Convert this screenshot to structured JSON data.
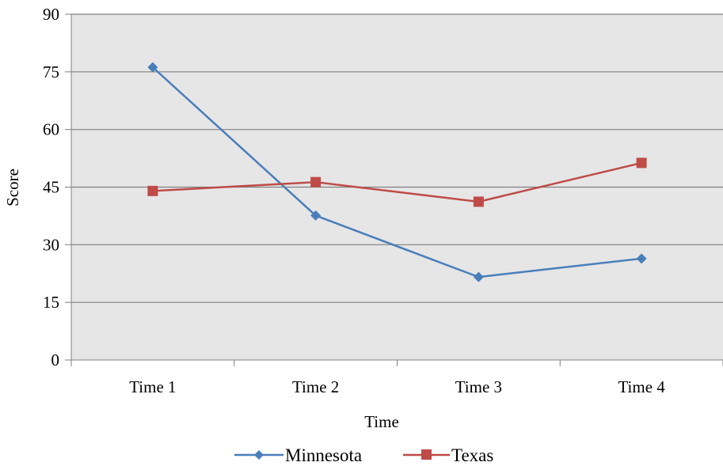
{
  "chart_data": {
    "type": "line",
    "title": "",
    "xlabel": "Time",
    "ylabel": "Score",
    "categories": [
      "Time 1",
      "Time 2",
      "Time 3",
      "Time 4"
    ],
    "ylim": [
      0,
      90
    ],
    "yticks": [
      0,
      15,
      30,
      45,
      60,
      75,
      90
    ],
    "ytick_labels": [
      "0",
      "15",
      "30",
      "45",
      "60",
      "75",
      "90"
    ],
    "grid": true,
    "legend_position": "bottom",
    "plot_background": "#e6e6e6",
    "series": [
      {
        "name": "Minnesota",
        "values": [
          76.2,
          37.6,
          21.6,
          26.4
        ],
        "color": "#4a7ebb",
        "marker": "diamond"
      },
      {
        "name": "Texas",
        "values": [
          44.0,
          46.3,
          41.2,
          51.3
        ],
        "color": "#be4b48",
        "marker": "square"
      }
    ]
  }
}
